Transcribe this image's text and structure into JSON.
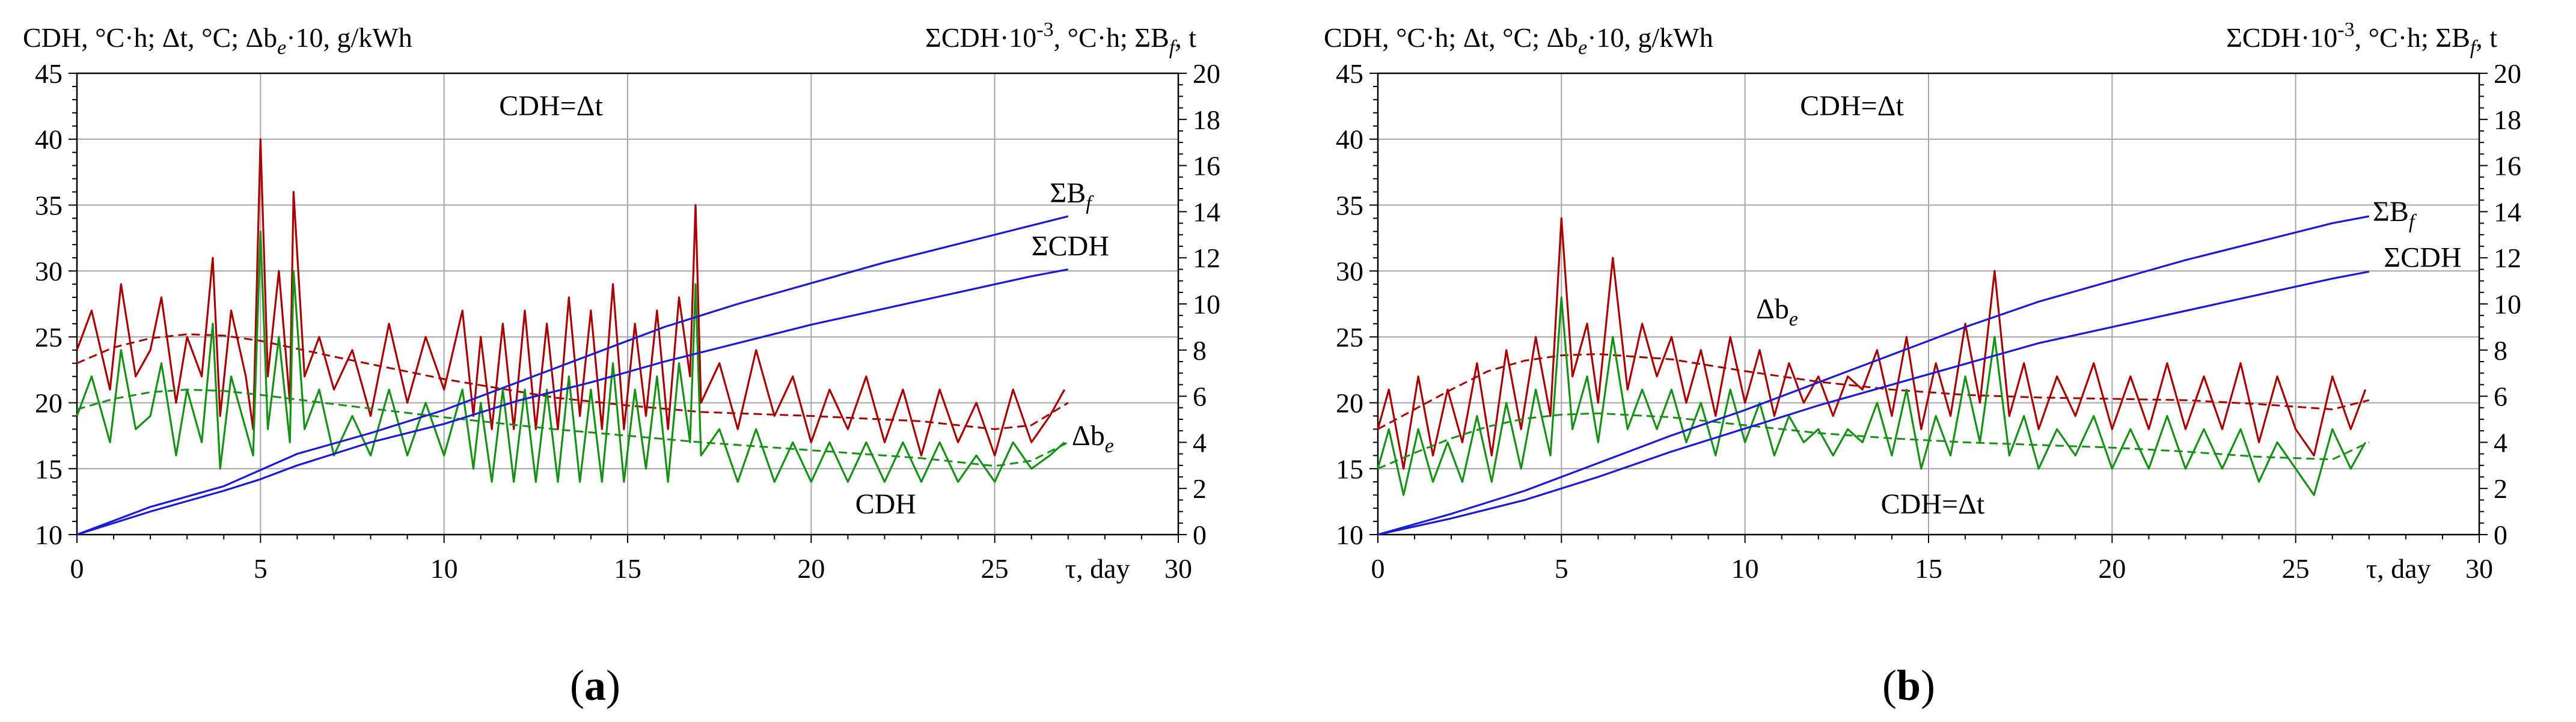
{
  "chart_data": [
    {
      "id": "a",
      "type": "line",
      "panel_label": "(a)",
      "left_axis_title": "CDH, °C·h; Δt, °C; Δb_e·10, g/kWh",
      "right_axis_title": "ΣCDH·10⁻³, °C·h; ΣB_f, t",
      "xlabel": "τ, day",
      "xlim": [
        0,
        30
      ],
      "x_ticks": [
        0,
        5,
        10,
        15,
        20,
        25,
        30
      ],
      "ylim_left": [
        10,
        45
      ],
      "y_ticks_left": [
        10,
        15,
        20,
        25,
        30,
        35,
        40,
        45
      ],
      "ylim_right": [
        0,
        20
      ],
      "y_ticks_right": [
        0,
        2,
        4,
        6,
        8,
        10,
        12,
        14,
        16,
        18,
        20
      ],
      "grid": true,
      "annotations": [
        {
          "text": "CDH=Δt",
          "x": 11.5,
          "y": 41.8
        },
        {
          "text": "ΣB_f",
          "x": 26.5,
          "y": 14.4,
          "axis": "right"
        },
        {
          "text": "ΣCDH",
          "x": 26.0,
          "y": 12.1,
          "axis": "right"
        },
        {
          "text": "Δb_e",
          "x": 27.1,
          "y": 16.8
        },
        {
          "text": "CDH",
          "x": 21.2,
          "y": 11.6
        }
      ],
      "series": [
        {
          "name": "Δb_e",
          "axis": "left",
          "color": "#a80000",
          "style": "solid",
          "x": [
            0,
            0.4,
            0.9,
            1.2,
            1.6,
            2.0,
            2.3,
            2.7,
            3.0,
            3.4,
            3.7,
            3.9,
            4.2,
            4.6,
            4.8,
            5.0,
            5.2,
            5.5,
            5.8,
            5.9,
            6.2,
            6.6,
            7.0,
            7.5,
            8.0,
            8.5,
            9.0,
            9.5,
            10.0,
            10.5,
            10.8,
            11.0,
            11.3,
            11.6,
            11.9,
            12.2,
            12.5,
            12.8,
            13.1,
            13.4,
            13.7,
            14.0,
            14.3,
            14.6,
            14.9,
            15.2,
            15.5,
            15.8,
            16.1,
            16.4,
            16.7,
            16.85,
            17.0,
            17.5,
            18.0,
            18.5,
            19.0,
            19.5,
            20.0,
            20.5,
            21.0,
            21.5,
            22.0,
            22.5,
            23.0,
            23.5,
            24.0,
            24.5,
            25.0,
            25.5,
            26.0,
            26.5,
            26.9
          ],
          "values": [
            24,
            27,
            21,
            29,
            22,
            24,
            28,
            20,
            25,
            22,
            31,
            19,
            27,
            22,
            18,
            40,
            22,
            30,
            20,
            36,
            22,
            25,
            21,
            24,
            19,
            26,
            20,
            25,
            21,
            27,
            19,
            25,
            18,
            26,
            18,
            27,
            18,
            26,
            18,
            28,
            19,
            27,
            18,
            29,
            18,
            26,
            19,
            27,
            18,
            28,
            22,
            35,
            20,
            23,
            18,
            24,
            19,
            22,
            17,
            21,
            18,
            22,
            17,
            21,
            16,
            21,
            17,
            20,
            16,
            21,
            17,
            19,
            21
          ]
        },
        {
          "name": "Δb_e trend",
          "axis": "left",
          "color": "#a80000",
          "style": "dashed",
          "x": [
            0,
            1,
            2,
            3,
            4,
            5,
            7,
            10,
            13,
            15,
            17,
            20,
            23,
            25,
            26,
            27
          ],
          "values": [
            23,
            24.2,
            24.9,
            25.2,
            25.1,
            24.7,
            23.5,
            21.8,
            20.4,
            19.8,
            19.3,
            19.0,
            18.6,
            18.0,
            18.3,
            20
          ]
        },
        {
          "name": "CDH",
          "axis": "left",
          "color": "#169116",
          "style": "solid",
          "x": [
            0,
            0.4,
            0.9,
            1.2,
            1.6,
            2.0,
            2.3,
            2.7,
            3.0,
            3.4,
            3.7,
            3.9,
            4.2,
            4.6,
            4.8,
            5.0,
            5.2,
            5.5,
            5.8,
            5.9,
            6.2,
            6.6,
            7.0,
            7.5,
            8.0,
            8.5,
            9.0,
            9.5,
            10.0,
            10.5,
            10.8,
            11.0,
            11.3,
            11.6,
            11.9,
            12.2,
            12.5,
            12.8,
            13.1,
            13.4,
            13.7,
            14.0,
            14.3,
            14.6,
            14.9,
            15.2,
            15.5,
            15.8,
            16.1,
            16.4,
            16.7,
            16.85,
            17.0,
            17.5,
            18.0,
            18.5,
            19.0,
            19.5,
            20.0,
            20.5,
            21.0,
            21.5,
            22.0,
            22.5,
            23.0,
            23.5,
            24.0,
            24.5,
            25.0,
            25.5,
            26.0,
            26.5,
            26.9
          ],
          "values": [
            19,
            22,
            17,
            24,
            18,
            19,
            23,
            16,
            21,
            17,
            26,
            15,
            22,
            18,
            16,
            33,
            18,
            25,
            17,
            30,
            18,
            21,
            16,
            19,
            16,
            21,
            16,
            20,
            16,
            21,
            15,
            20,
            14,
            21,
            14,
            21,
            14,
            21,
            14,
            22,
            14,
            21,
            14,
            23,
            14,
            21,
            15,
            22,
            14,
            23,
            17,
            29,
            16,
            18,
            14,
            18,
            14,
            17,
            14,
            17,
            14,
            17,
            14,
            17,
            14,
            17,
            14,
            16,
            14,
            17,
            15,
            16,
            17
          ]
        },
        {
          "name": "CDH trend",
          "axis": "left",
          "color": "#169116",
          "style": "dashed",
          "x": [
            0,
            1,
            2,
            3,
            4,
            5,
            7,
            10,
            13,
            15,
            17,
            20,
            23,
            25,
            26,
            27
          ],
          "values": [
            19.5,
            20.3,
            20.8,
            21.0,
            20.9,
            20.6,
            19.9,
            18.9,
            18.0,
            17.5,
            17.0,
            16.4,
            15.8,
            15.2,
            15.6,
            17
          ]
        },
        {
          "name": "ΣB_f",
          "axis": "right",
          "color": "#1a1ad6",
          "style": "solid",
          "x": [
            0,
            2,
            4,
            5,
            6,
            8,
            10,
            12,
            14,
            16,
            18,
            20,
            22,
            24,
            26,
            27
          ],
          "values": [
            0,
            1.2,
            2.1,
            2.8,
            3.5,
            4.4,
            5.4,
            6.6,
            7.8,
            9.0,
            10.0,
            10.9,
            11.8,
            12.6,
            13.4,
            13.8
          ]
        },
        {
          "name": "ΣCDH",
          "axis": "right",
          "color": "#1a1ad6",
          "style": "solid",
          "x": [
            0,
            2,
            4,
            5,
            6,
            8,
            10,
            12,
            14,
            16,
            18,
            20,
            22,
            24,
            26,
            27
          ],
          "values": [
            0,
            1.0,
            1.9,
            2.4,
            3.0,
            4.0,
            4.8,
            5.8,
            6.6,
            7.5,
            8.3,
            9.1,
            9.8,
            10.5,
            11.2,
            11.5
          ]
        }
      ]
    },
    {
      "id": "b",
      "type": "line",
      "panel_label": "(b)",
      "left_axis_title": "CDH, °C·h; Δt, °C; Δb_e·10, g/kWh",
      "right_axis_title": "ΣCDH·10⁻³, °C·h; ΣB_f, t",
      "xlabel": "τ, day",
      "xlim": [
        0,
        30
      ],
      "x_ticks": [
        0,
        5,
        10,
        15,
        20,
        25,
        30
      ],
      "ylim_left": [
        10,
        45
      ],
      "y_ticks_left": [
        10,
        15,
        20,
        25,
        30,
        35,
        40,
        45
      ],
      "ylim_right": [
        0,
        20
      ],
      "y_ticks_right": [
        0,
        2,
        4,
        6,
        8,
        10,
        12,
        14,
        16,
        18,
        20
      ],
      "grid": true,
      "annotations": [
        {
          "text": "CDH=Δt",
          "x": 11.5,
          "y": 41.8
        },
        {
          "text": "ΣB_f",
          "x": 27.1,
          "y": 13.6,
          "axis": "right"
        },
        {
          "text": "ΣCDH",
          "x": 27.4,
          "y": 11.6,
          "axis": "right"
        },
        {
          "text": "Δb_e",
          "x": 10.3,
          "y": 26.4
        },
        {
          "text": "CDH=Δt",
          "x": 13.7,
          "y": 11.6
        }
      ],
      "series": [
        {
          "name": "Δb_e",
          "axis": "left",
          "color": "#a80000",
          "style": "solid",
          "x": [
            0,
            0.3,
            0.7,
            1.1,
            1.5,
            1.9,
            2.3,
            2.7,
            3.1,
            3.5,
            3.9,
            4.3,
            4.7,
            5.0,
            5.3,
            5.7,
            6.0,
            6.4,
            6.8,
            7.2,
            7.6,
            8.0,
            8.4,
            8.8,
            9.2,
            9.6,
            10.0,
            10.4,
            10.8,
            11.2,
            11.6,
            12.0,
            12.4,
            12.8,
            13.2,
            13.6,
            14.0,
            14.4,
            14.8,
            15.2,
            15.6,
            16.0,
            16.4,
            16.8,
            17.2,
            17.6,
            18.0,
            18.5,
            19.0,
            19.5,
            20.0,
            20.5,
            21.0,
            21.5,
            22.0,
            22.5,
            23.0,
            23.5,
            24.0,
            24.5,
            25.0,
            25.5,
            26.0,
            26.5,
            26.9
          ],
          "values": [
            18,
            21,
            15,
            22,
            16,
            21,
            17,
            23,
            16,
            24,
            18,
            25,
            19,
            34,
            22,
            26,
            20,
            31,
            21,
            26,
            22,
            25,
            20,
            24,
            19,
            25,
            20,
            24,
            19,
            23,
            20,
            22,
            19,
            22,
            21,
            24,
            19,
            25,
            18,
            23,
            19,
            26,
            20,
            30,
            19,
            23,
            18,
            22,
            19,
            23,
            18,
            22,
            18,
            23,
            18,
            22,
            18,
            23,
            17,
            22,
            18,
            16,
            22,
            18,
            21
          ]
        },
        {
          "name": "Δb_e trend",
          "axis": "left",
          "color": "#a80000",
          "style": "dashed",
          "x": [
            0,
            1,
            2,
            3,
            4,
            5,
            6,
            8,
            10,
            12,
            14,
            16,
            18,
            20,
            22,
            24,
            26,
            27
          ],
          "values": [
            18,
            19.5,
            21,
            22.4,
            23.2,
            23.6,
            23.7,
            23.3,
            22.4,
            21.6,
            21.0,
            20.6,
            20.4,
            20.3,
            20.2,
            19.9,
            19.5,
            20.2
          ]
        },
        {
          "name": "CDH",
          "axis": "left",
          "color": "#169116",
          "style": "solid",
          "x": [
            0,
            0.3,
            0.7,
            1.1,
            1.5,
            1.9,
            2.3,
            2.7,
            3.1,
            3.5,
            3.9,
            4.3,
            4.7,
            5.0,
            5.3,
            5.7,
            6.0,
            6.4,
            6.8,
            7.2,
            7.6,
            8.0,
            8.4,
            8.8,
            9.2,
            9.6,
            10.0,
            10.4,
            10.8,
            11.2,
            11.6,
            12.0,
            12.4,
            12.8,
            13.2,
            13.6,
            14.0,
            14.4,
            14.8,
            15.2,
            15.6,
            16.0,
            16.4,
            16.8,
            17.2,
            17.6,
            18.0,
            18.5,
            19.0,
            19.5,
            20.0,
            20.5,
            21.0,
            21.5,
            22.0,
            22.5,
            23.0,
            23.5,
            24.0,
            24.5,
            25.0,
            25.5,
            26.0,
            26.5,
            26.9
          ],
          "values": [
            15,
            18,
            13,
            18,
            14,
            17,
            14,
            19,
            14,
            20,
            15,
            21,
            16,
            28,
            18,
            22,
            17,
            25,
            18,
            21,
            18,
            21,
            17,
            20,
            16,
            21,
            17,
            20,
            16,
            19,
            17,
            18,
            16,
            18,
            17,
            20,
            16,
            21,
            15,
            19,
            16,
            22,
            17,
            25,
            16,
            19,
            15,
            18,
            16,
            19,
            15,
            18,
            15,
            19,
            15,
            18,
            15,
            18,
            14,
            17,
            15,
            13,
            18,
            15,
            17
          ]
        },
        {
          "name": "CDH trend",
          "axis": "left",
          "color": "#169116",
          "style": "dashed",
          "x": [
            0,
            1,
            2,
            3,
            4,
            5,
            6,
            8,
            10,
            12,
            14,
            16,
            18,
            20,
            22,
            24,
            26,
            27
          ],
          "values": [
            15,
            16.2,
            17.3,
            18.2,
            18.8,
            19.1,
            19.2,
            18.9,
            18.3,
            17.7,
            17.3,
            17.0,
            16.8,
            16.6,
            16.3,
            15.9,
            15.7,
            17
          ]
        },
        {
          "name": "ΣB_f",
          "axis": "right",
          "color": "#1a1ad6",
          "style": "solid",
          "x": [
            0,
            2,
            4,
            5,
            6,
            8,
            10,
            12,
            14,
            16,
            18,
            20,
            22,
            24,
            26,
            27
          ],
          "values": [
            0,
            0.9,
            1.9,
            2.5,
            3.1,
            4.3,
            5.4,
            6.6,
            7.8,
            9.0,
            10.1,
            11.0,
            11.9,
            12.7,
            13.5,
            13.8
          ]
        },
        {
          "name": "ΣCDH",
          "axis": "right",
          "color": "#1a1ad6",
          "style": "solid",
          "x": [
            0,
            2,
            4,
            5,
            6,
            8,
            10,
            12,
            14,
            16,
            18,
            20,
            22,
            24,
            26,
            27
          ],
          "values": [
            0,
            0.7,
            1.5,
            2.0,
            2.5,
            3.6,
            4.6,
            5.6,
            6.5,
            7.4,
            8.3,
            9.0,
            9.7,
            10.4,
            11.1,
            11.4
          ]
        }
      ]
    }
  ]
}
